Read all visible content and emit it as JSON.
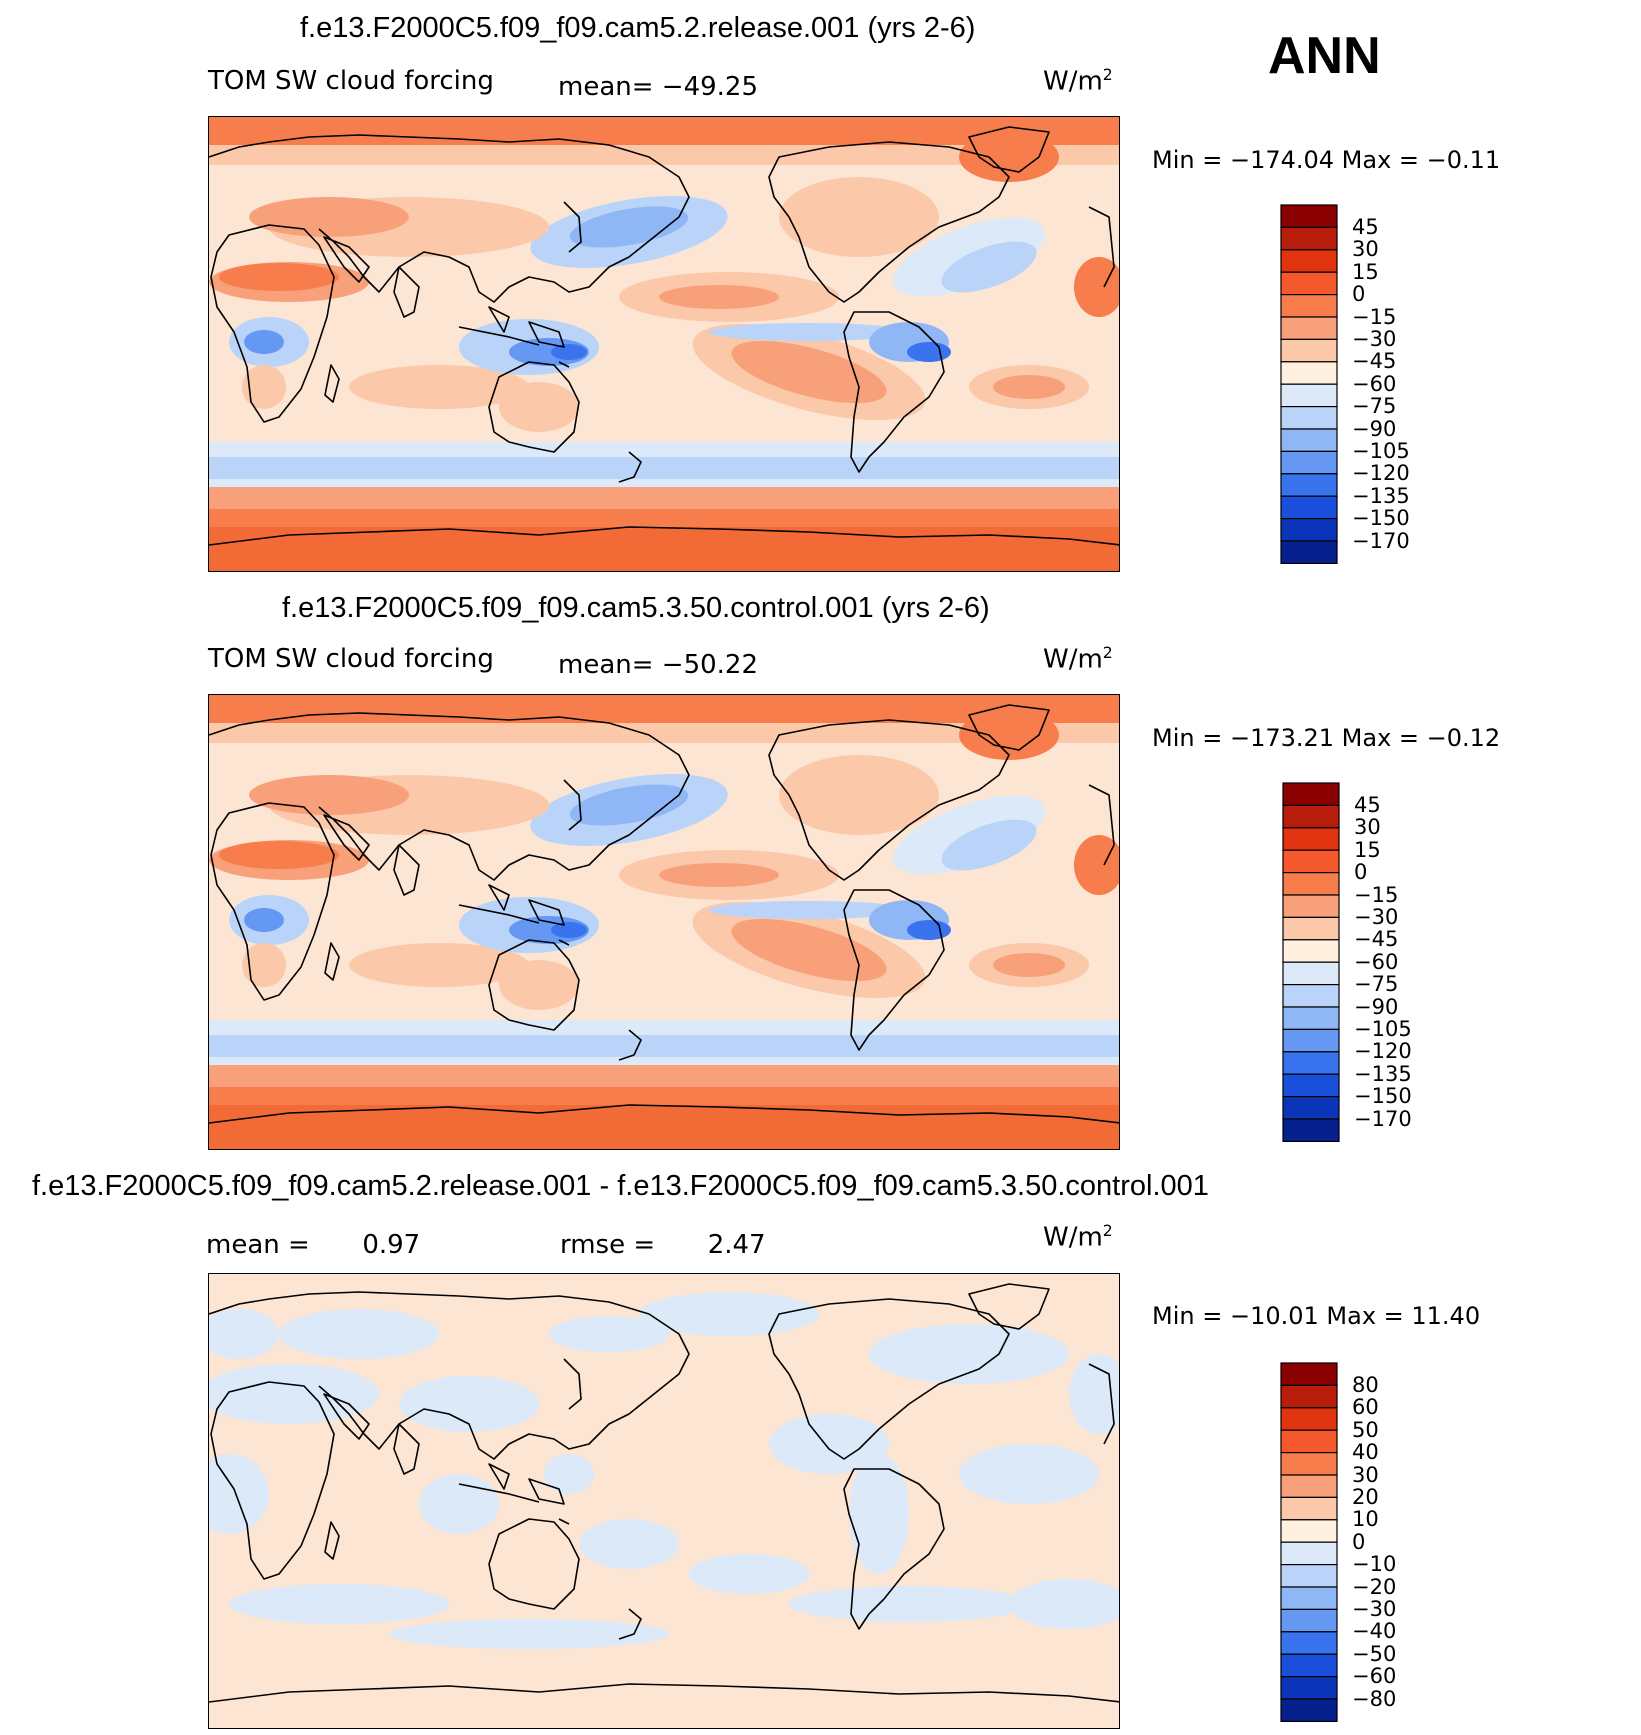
{
  "season": "ANN",
  "units_base": "W/m",
  "units_exp": "2",
  "panels": [
    {
      "title": "f.e13.F2000C5.f09_f09.cam5.2.release.001 (yrs 2-6)",
      "left_label": "TOM SW cloud forcing",
      "mean_label": "mean=",
      "mean_value": "−49.25",
      "minmax": "Min = −174.04 Max =   −0.11",
      "colorbar": {
        "colors": [
          "#8b0000",
          "#b81c0a",
          "#e0330f",
          "#f5582a",
          "#f77d4c",
          "#f7a07a",
          "#fbc9aa",
          "#fff0e0",
          "#dbe9f9",
          "#b9d4f8",
          "#90b7f5",
          "#6598f3",
          "#3a73ee",
          "#1a4fdb",
          "#0a35b8",
          "#06208e"
        ],
        "labels": [
          "45",
          "30",
          "15",
          "0",
          "−15",
          "−30",
          "−45",
          "−60",
          "−75",
          "−90",
          "−105",
          "−120",
          "−135",
          "−150",
          "−170"
        ]
      }
    },
    {
      "title": "f.e13.F2000C5.f09_f09.cam5.3.50.control.001 (yrs 2-6)",
      "left_label": "TOM SW cloud forcing",
      "mean_label": "mean=",
      "mean_value": "−50.22",
      "minmax": "Min = −173.21 Max =   −0.12",
      "colorbar": {
        "colors": [
          "#8b0000",
          "#b81c0a",
          "#e0330f",
          "#f5582a",
          "#f77d4c",
          "#f7a07a",
          "#fbc9aa",
          "#fff0e0",
          "#dbe9f9",
          "#b9d4f8",
          "#90b7f5",
          "#6598f3",
          "#3a73ee",
          "#1a4fdb",
          "#0a35b8",
          "#06208e"
        ],
        "labels": [
          "45",
          "30",
          "15",
          "0",
          "−15",
          "−30",
          "−45",
          "−60",
          "−75",
          "−90",
          "−105",
          "−120",
          "−135",
          "−150",
          "−170"
        ]
      }
    },
    {
      "title": "f.e13.F2000C5.f09_f09.cam5.2.release.001 - f.e13.F2000C5.f09_f09.cam5.3.50.control.001",
      "mean_label": "mean =",
      "mean_value": "0.97",
      "rmse_label": "rmse =",
      "rmse_value": "2.47",
      "minmax": "Min = −10.01 Max =   11.40",
      "colorbar": {
        "colors": [
          "#8b0000",
          "#b81c0a",
          "#e0330f",
          "#f5582a",
          "#f77d4c",
          "#f7a07a",
          "#fbc9aa",
          "#fff0e0",
          "#dbe9f9",
          "#b9d4f8",
          "#90b7f5",
          "#6598f3",
          "#3a73ee",
          "#1a4fdb",
          "#0a35b8",
          "#06208e"
        ],
        "labels": [
          "80",
          "60",
          "50",
          "40",
          "30",
          "20",
          "10",
          "0",
          "−10",
          "−20",
          "−30",
          "−40",
          "−50",
          "−60",
          "−80"
        ]
      }
    }
  ]
}
